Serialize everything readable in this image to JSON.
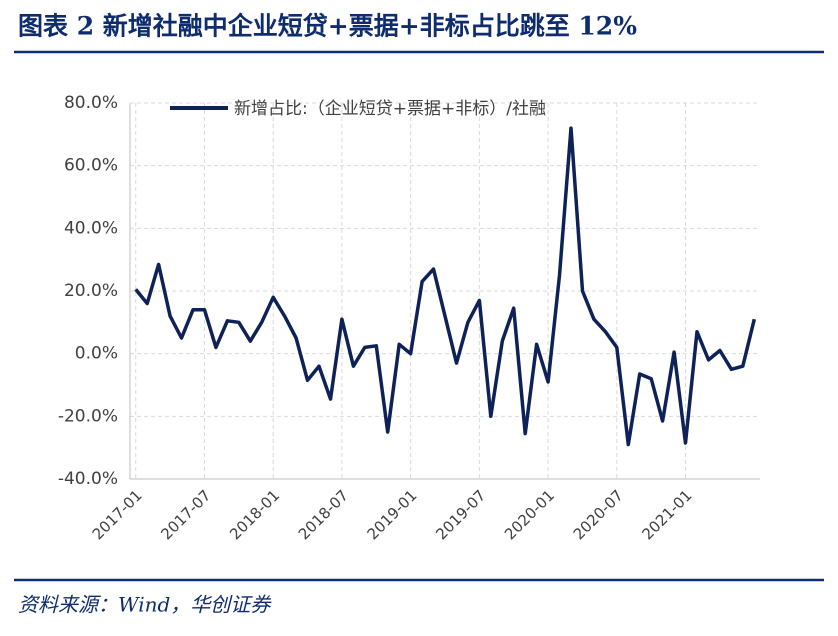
{
  "chart_data": {
    "type": "line",
    "title": "图表 2    新增社融中企业短贷+票据+非标占比跳至 12%",
    "source": "资料来源：Wind，华创证券",
    "categories": [
      "2017-01",
      null,
      null,
      null,
      null,
      null,
      "2017-07",
      null,
      null,
      null,
      null,
      null,
      "2018-01",
      null,
      null,
      null,
      null,
      null,
      "2018-07",
      null,
      null,
      null,
      null,
      null,
      "2019-01",
      null,
      null,
      null,
      null,
      null,
      "2019-07",
      null,
      null,
      null,
      null,
      null,
      "2020-01",
      null,
      null,
      null,
      null,
      null,
      "2020-07",
      null,
      null,
      null,
      null,
      null,
      "2021-01",
      null,
      null,
      null,
      null,
      null,
      null
    ],
    "series": [
      {
        "name": "新增占比:（企业短贷+票据+非标）/社融",
        "color": "#0e2258",
        "values": [
          20.5,
          16,
          28.5,
          12,
          5,
          14,
          14,
          2,
          10.5,
          10,
          4,
          10,
          18,
          12,
          5,
          -8.5,
          -4,
          -14.5,
          11,
          -4,
          2,
          2.5,
          -25,
          3,
          0,
          23,
          27,
          12,
          -3,
          10,
          17,
          -20,
          4,
          14.5,
          -25.5,
          3,
          -9,
          25,
          72,
          20,
          11,
          7,
          2,
          -29,
          -6.5,
          -8,
          -21.5,
          0.5,
          -28.5,
          7,
          -2,
          1,
          -5,
          -4,
          11
        ]
      }
    ],
    "ylim": [
      -40,
      80
    ],
    "yticks": [
      {
        "value": 80,
        "label": "80.0%"
      },
      {
        "value": 60,
        "label": "60.0%"
      },
      {
        "value": 40,
        "label": "40.0%"
      },
      {
        "value": 20,
        "label": "20.0%"
      },
      {
        "value": 0,
        "label": "0.0%"
      },
      {
        "value": -20,
        "label": "-20.0%"
      },
      {
        "value": -40,
        "label": "-40.0%"
      }
    ],
    "grid": true
  }
}
